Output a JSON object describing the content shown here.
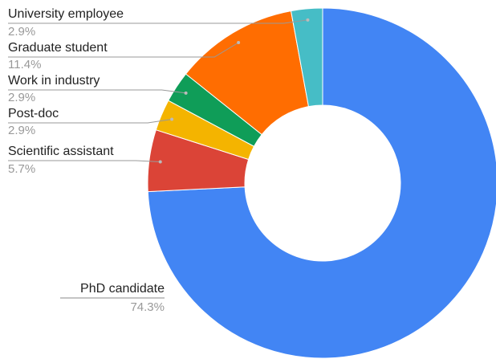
{
  "chart_data": {
    "type": "donut",
    "categories": [
      "PhD candidate",
      "Scientific assistant",
      "Post-doc",
      "Work in industry",
      "Graduate student",
      "University employee"
    ],
    "values": [
      74.3,
      5.7,
      2.9,
      2.9,
      11.4,
      2.9
    ],
    "value_labels": [
      "74.3%",
      "5.7%",
      "2.9%",
      "2.9%",
      "11.4%",
      "2.9%"
    ],
    "colors": [
      "#4285f4",
      "#db4437",
      "#f4b400",
      "#0f9d58",
      "#ff6d01",
      "#46bdc6"
    ]
  }
}
